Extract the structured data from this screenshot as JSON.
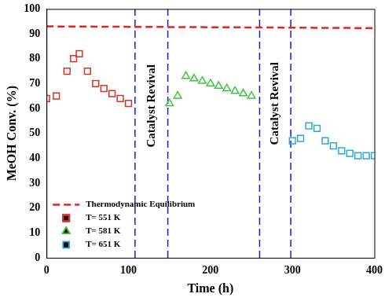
{
  "chart_data": {
    "type": "scatter",
    "x_label": "Time (h)",
    "y_label": "MeOH Conv. (%)",
    "xlim": [
      0,
      400
    ],
    "xticks": [
      0,
      100,
      200,
      300,
      400
    ],
    "ylim": [
      0,
      100
    ],
    "yticks": [
      0,
      10,
      20,
      30,
      40,
      50,
      60,
      70,
      80,
      90,
      100
    ],
    "grid": false,
    "legend": "lower left",
    "series": [
      {
        "name": "Thermodynamic Equilibrium",
        "type": "line",
        "color": "#e8231c",
        "line_style": "dashed",
        "marker": "none",
        "x": [
          0,
          400
        ],
        "values": [
          93,
          92.3
        ]
      },
      {
        "name": "T= 551 K",
        "color": "#d9302a",
        "marker": "square",
        "x": [
          0,
          12,
          25,
          33,
          40,
          50,
          60,
          70,
          80,
          90,
          100
        ],
        "values": [
          64,
          65,
          75,
          80,
          82,
          75,
          70,
          68,
          66,
          64,
          62
        ]
      },
      {
        "name": "T= 581 K",
        "color": "#3cc43c",
        "marker": "triangle",
        "x": [
          150,
          160,
          170,
          180,
          190,
          200,
          210,
          220,
          230,
          240,
          250
        ],
        "values": [
          62,
          65,
          73,
          72,
          71,
          70,
          69,
          68,
          67,
          66,
          65
        ]
      },
      {
        "name": "T= 651 K",
        "color": "#2ea8d8",
        "marker": "square",
        "x": [
          300,
          310,
          320,
          330,
          340,
          350,
          360,
          370,
          380,
          390,
          400
        ],
        "values": [
          47,
          48,
          53,
          52,
          47,
          45,
          43,
          42,
          41,
          41,
          41
        ]
      }
    ],
    "reference_lines": [
      {
        "x": 108,
        "color": "#1a1ad0",
        "line_style": "dashed"
      },
      {
        "x": 148,
        "color": "#1a1ad0",
        "line_style": "dashed"
      },
      {
        "x": 260,
        "color": "#1a1ad0",
        "line_style": "dashed"
      },
      {
        "x": 298,
        "color": "#1a1ad0",
        "line_style": "dashed"
      }
    ],
    "annotations": [
      {
        "text": "Catalyst Revival",
        "x": 128,
        "y": 61
      },
      {
        "text": "Catalyst Revival",
        "x": 279,
        "y": 62
      }
    ]
  }
}
